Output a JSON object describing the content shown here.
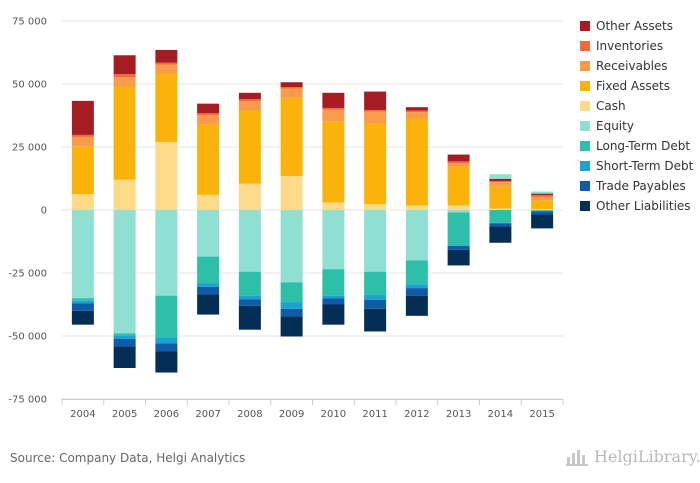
{
  "chart_data": {
    "type": "bar",
    "stacked": true,
    "categories": [
      "2004",
      "2005",
      "2006",
      "2007",
      "2008",
      "2009",
      "2010",
      "2011",
      "2012",
      "2013",
      "2014",
      "2015"
    ],
    "ylim": [
      -75000,
      75000
    ],
    "yticks": [
      75000,
      50000,
      25000,
      0,
      -25000,
      -50000,
      -75000
    ],
    "ytick_labels": [
      "75 000",
      "50 000",
      "25 000",
      "0",
      "-25 000",
      "-50 000",
      "-75 000"
    ],
    "grid": true,
    "legend_position": "right",
    "series": [
      {
        "name": "Cash",
        "color": "#fdd98a",
        "values": [
          6300,
          12000,
          27000,
          6000,
          10500,
          13500,
          3000,
          2300,
          1800,
          1800,
          600,
          300
        ]
      },
      {
        "name": "Fixed Assets",
        "color": "#fbb20a",
        "values": [
          19000,
          37000,
          27000,
          28000,
          29000,
          31000,
          32000,
          32000,
          34500,
          15500,
          8800,
          3400
        ]
      },
      {
        "name": "Receivables",
        "color": "#f99c4a",
        "values": [
          3700,
          3700,
          3700,
          3700,
          3700,
          3700,
          4800,
          4700,
          2500,
          1200,
          1600,
          1500
        ]
      },
      {
        "name": "Inventories",
        "color": "#f6693a",
        "values": [
          800,
          1200,
          800,
          700,
          800,
          600,
          700,
          700,
          700,
          800,
          500,
          700
        ]
      },
      {
        "name": "Other Assets",
        "color": "#a51c23",
        "values": [
          13500,
          7500,
          5000,
          3800,
          2500,
          1900,
          6000,
          7300,
          1300,
          2700,
          900,
          600
        ]
      },
      {
        "name": "Equity",
        "color": "#8fdfd2",
        "values": [
          -35000,
          -49000,
          -34000,
          -18500,
          -24500,
          -28700,
          -23500,
          -24500,
          -20000,
          -1000,
          1800,
          800
        ]
      },
      {
        "name": "Long-Term Debt",
        "color": "#2ebfa8",
        "values": [
          -1000,
          -1000,
          -16500,
          -10500,
          -9500,
          -8000,
          -10500,
          -9200,
          -9500,
          -13000,
          -5000,
          -300
        ]
      },
      {
        "name": "Short-Term Debt",
        "color": "#1aa3cf",
        "values": [
          -1000,
          -1200,
          -2500,
          -1500,
          -1500,
          -2500,
          -1000,
          -2000,
          -1500,
          -300,
          -300,
          -300
        ]
      },
      {
        "name": "Trade Payables",
        "color": "#0e5ba8",
        "values": [
          -3000,
          -3000,
          -3000,
          -3000,
          -2500,
          -3000,
          -2500,
          -3500,
          -3000,
          -1500,
          -1200,
          -1200
        ]
      },
      {
        "name": "Other Liabilities",
        "color": "#052e57",
        "values": [
          -5500,
          -8500,
          -8500,
          -8000,
          -9500,
          -8000,
          -8000,
          -9000,
          -8000,
          -6200,
          -6500,
          -5500
        ]
      }
    ],
    "legend_order": [
      "Other Assets",
      "Inventories",
      "Receivables",
      "Fixed Assets",
      "Cash",
      "Equity",
      "Long-Term Debt",
      "Short-Term Debt",
      "Trade Payables",
      "Other Liabilities"
    ]
  },
  "footer": {
    "source": "Source: Company Data, Helgi Analytics",
    "logo_text": "HelgiLibrary.",
    "logo_icon": "helgi-library-logo-icon"
  }
}
